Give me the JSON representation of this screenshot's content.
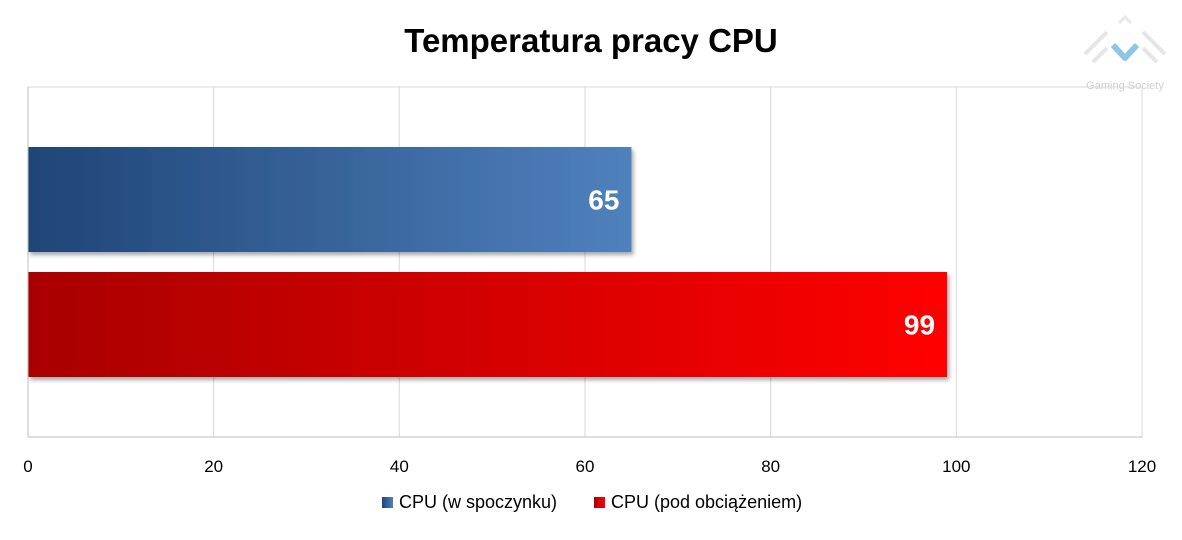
{
  "chart_data": {
    "type": "bar",
    "orientation": "horizontal",
    "title": "Temperatura pracy CPU",
    "xlabel": "",
    "ylabel": "",
    "xlim": [
      0,
      120
    ],
    "x_ticks": [
      0,
      20,
      40,
      60,
      80,
      100,
      120
    ],
    "grid": true,
    "legend_position": "bottom",
    "series": [
      {
        "name": "CPU (w spoczynku)",
        "value": 65,
        "color_start": "#1f4577",
        "color_end": "#4f81bd"
      },
      {
        "name": "CPU (pod obciążeniem)",
        "value": 99,
        "color_start": "#a80000",
        "color_end": "#ff0000"
      }
    ]
  },
  "watermark": {
    "text": "Gaming Society",
    "icon": "chevron-down-logo-icon",
    "accent": "#8ec6e6"
  }
}
